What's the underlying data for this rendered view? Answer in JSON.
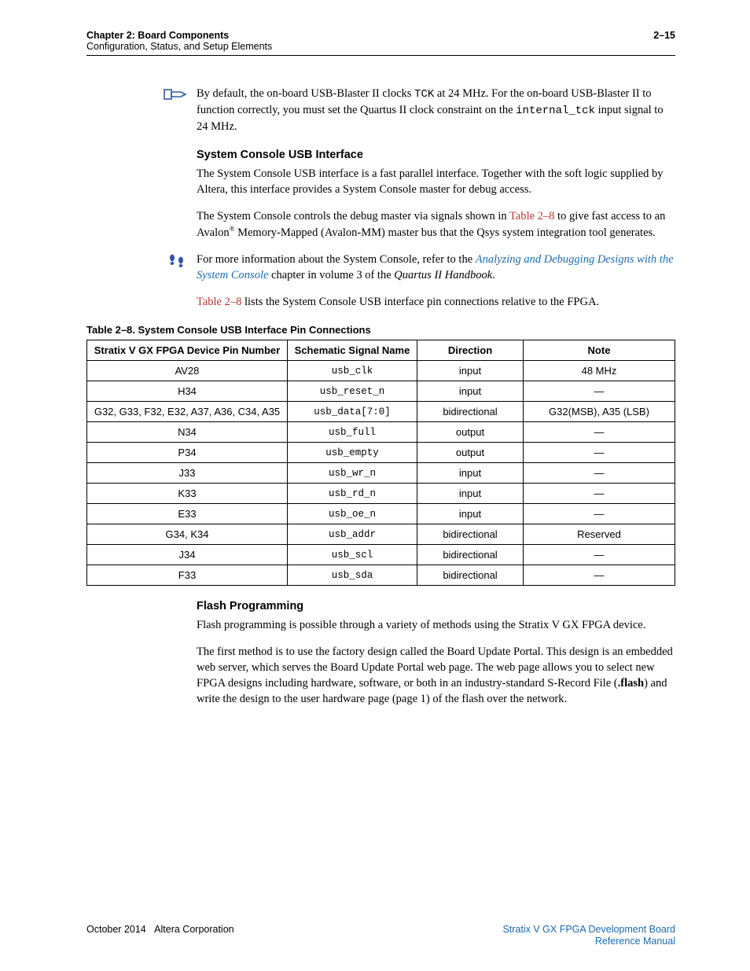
{
  "header": {
    "chapter": "Chapter 2: Board Components",
    "sub": "Configuration, Status, and Setup Elements",
    "page": "2–15"
  },
  "icon_colors": {
    "note": "#3556a7",
    "ref": "#3556a7"
  },
  "p1": {
    "pre": "By default, the on-board USB-Blaster II clocks ",
    "tck": "TCK",
    "mid": " at 24 MHz. For the on-board USB-Blaster II to function correctly, you must set the Quartus II clock constraint on the ",
    "sig": "internal_tck",
    "post": " input signal to 24 MHz."
  },
  "h1": "System Console USB Interface",
  "p2": "The System Console USB interface is a fast parallel interface. Together with the soft logic supplied by Altera, this interface provides a System Console master for debug access.",
  "p3": {
    "a": "The System Console controls the debug master via signals shown in ",
    "ref": "Table 2–8",
    "b": " to give fast access to an Avalon",
    "reg": "®",
    "c": " Memory-Mapped (Avalon-MM) master bus that the Qsys system integration tool generates."
  },
  "p4": {
    "a": "For more information about the System Console, refer to the ",
    "link": "Analyzing and Debugging Designs with the System Console",
    "b": " chapter in volume 3 of the ",
    "ital": "Quartus II Handbook",
    "c": "."
  },
  "p5": {
    "ref": "Table 2–8",
    "b": " lists the System Console USB interface pin connections relative to the FPGA."
  },
  "table_caption": "Table 2–8. System Console USB Interface Pin Connections",
  "table": {
    "columns": [
      "Stratix V GX FPGA Device Pin Number",
      "Schematic Signal Name",
      "Direction",
      "Note"
    ],
    "col_widths": [
      "255px",
      "165px",
      "135px",
      "auto"
    ],
    "rows": [
      {
        "pin": "AV28",
        "sig": "usb_clk",
        "dir": "input",
        "note": "48 MHz"
      },
      {
        "pin": "H34",
        "sig": "usb_reset_n",
        "dir": "input",
        "note": "—"
      },
      {
        "pin": "G32, G33, F32, E32, A37, A36, C34, A35",
        "sig": "usb_data[7:0]",
        "dir": "bidirectional",
        "note": "G32(MSB), A35 (LSB)"
      },
      {
        "pin": "N34",
        "sig": "usb_full",
        "dir": "output",
        "note": "—"
      },
      {
        "pin": "P34",
        "sig": "usb_empty",
        "dir": "output",
        "note": "—"
      },
      {
        "pin": "J33",
        "sig": "usb_wr_n",
        "dir": "input",
        "note": "—"
      },
      {
        "pin": "K33",
        "sig": "usb_rd_n",
        "dir": "input",
        "note": "—"
      },
      {
        "pin": "E33",
        "sig": "usb_oe_n",
        "dir": "input",
        "note": "—"
      },
      {
        "pin": "G34, K34",
        "sig": "usb_addr",
        "dir": "bidirectional",
        "note": "Reserved"
      },
      {
        "pin": "J34",
        "sig": "usb_scl",
        "dir": "bidirectional",
        "note": "—"
      },
      {
        "pin": "F33",
        "sig": "usb_sda",
        "dir": "bidirectional",
        "note": "—"
      }
    ]
  },
  "h2": "Flash Programming",
  "p6": "Flash programming is possible through a variety of methods using the Stratix V GX FPGA device.",
  "p7": {
    "a": "The first method is to use the factory design called the Board Update Portal. This design is an embedded web server, which serves the Board Update Portal web page. The web page allows you to select new FPGA designs including hardware, software, or both in an industry-standard S-Record File (",
    "bold": ".flash",
    "b": ") and write the design to the user hardware page (page 1) of the flash over the network."
  },
  "footer": {
    "left_date": "October 2014",
    "left_corp": "Altera Corporation",
    "right_title": "Stratix V GX FPGA Development Board",
    "right_sub": "Reference Manual"
  }
}
